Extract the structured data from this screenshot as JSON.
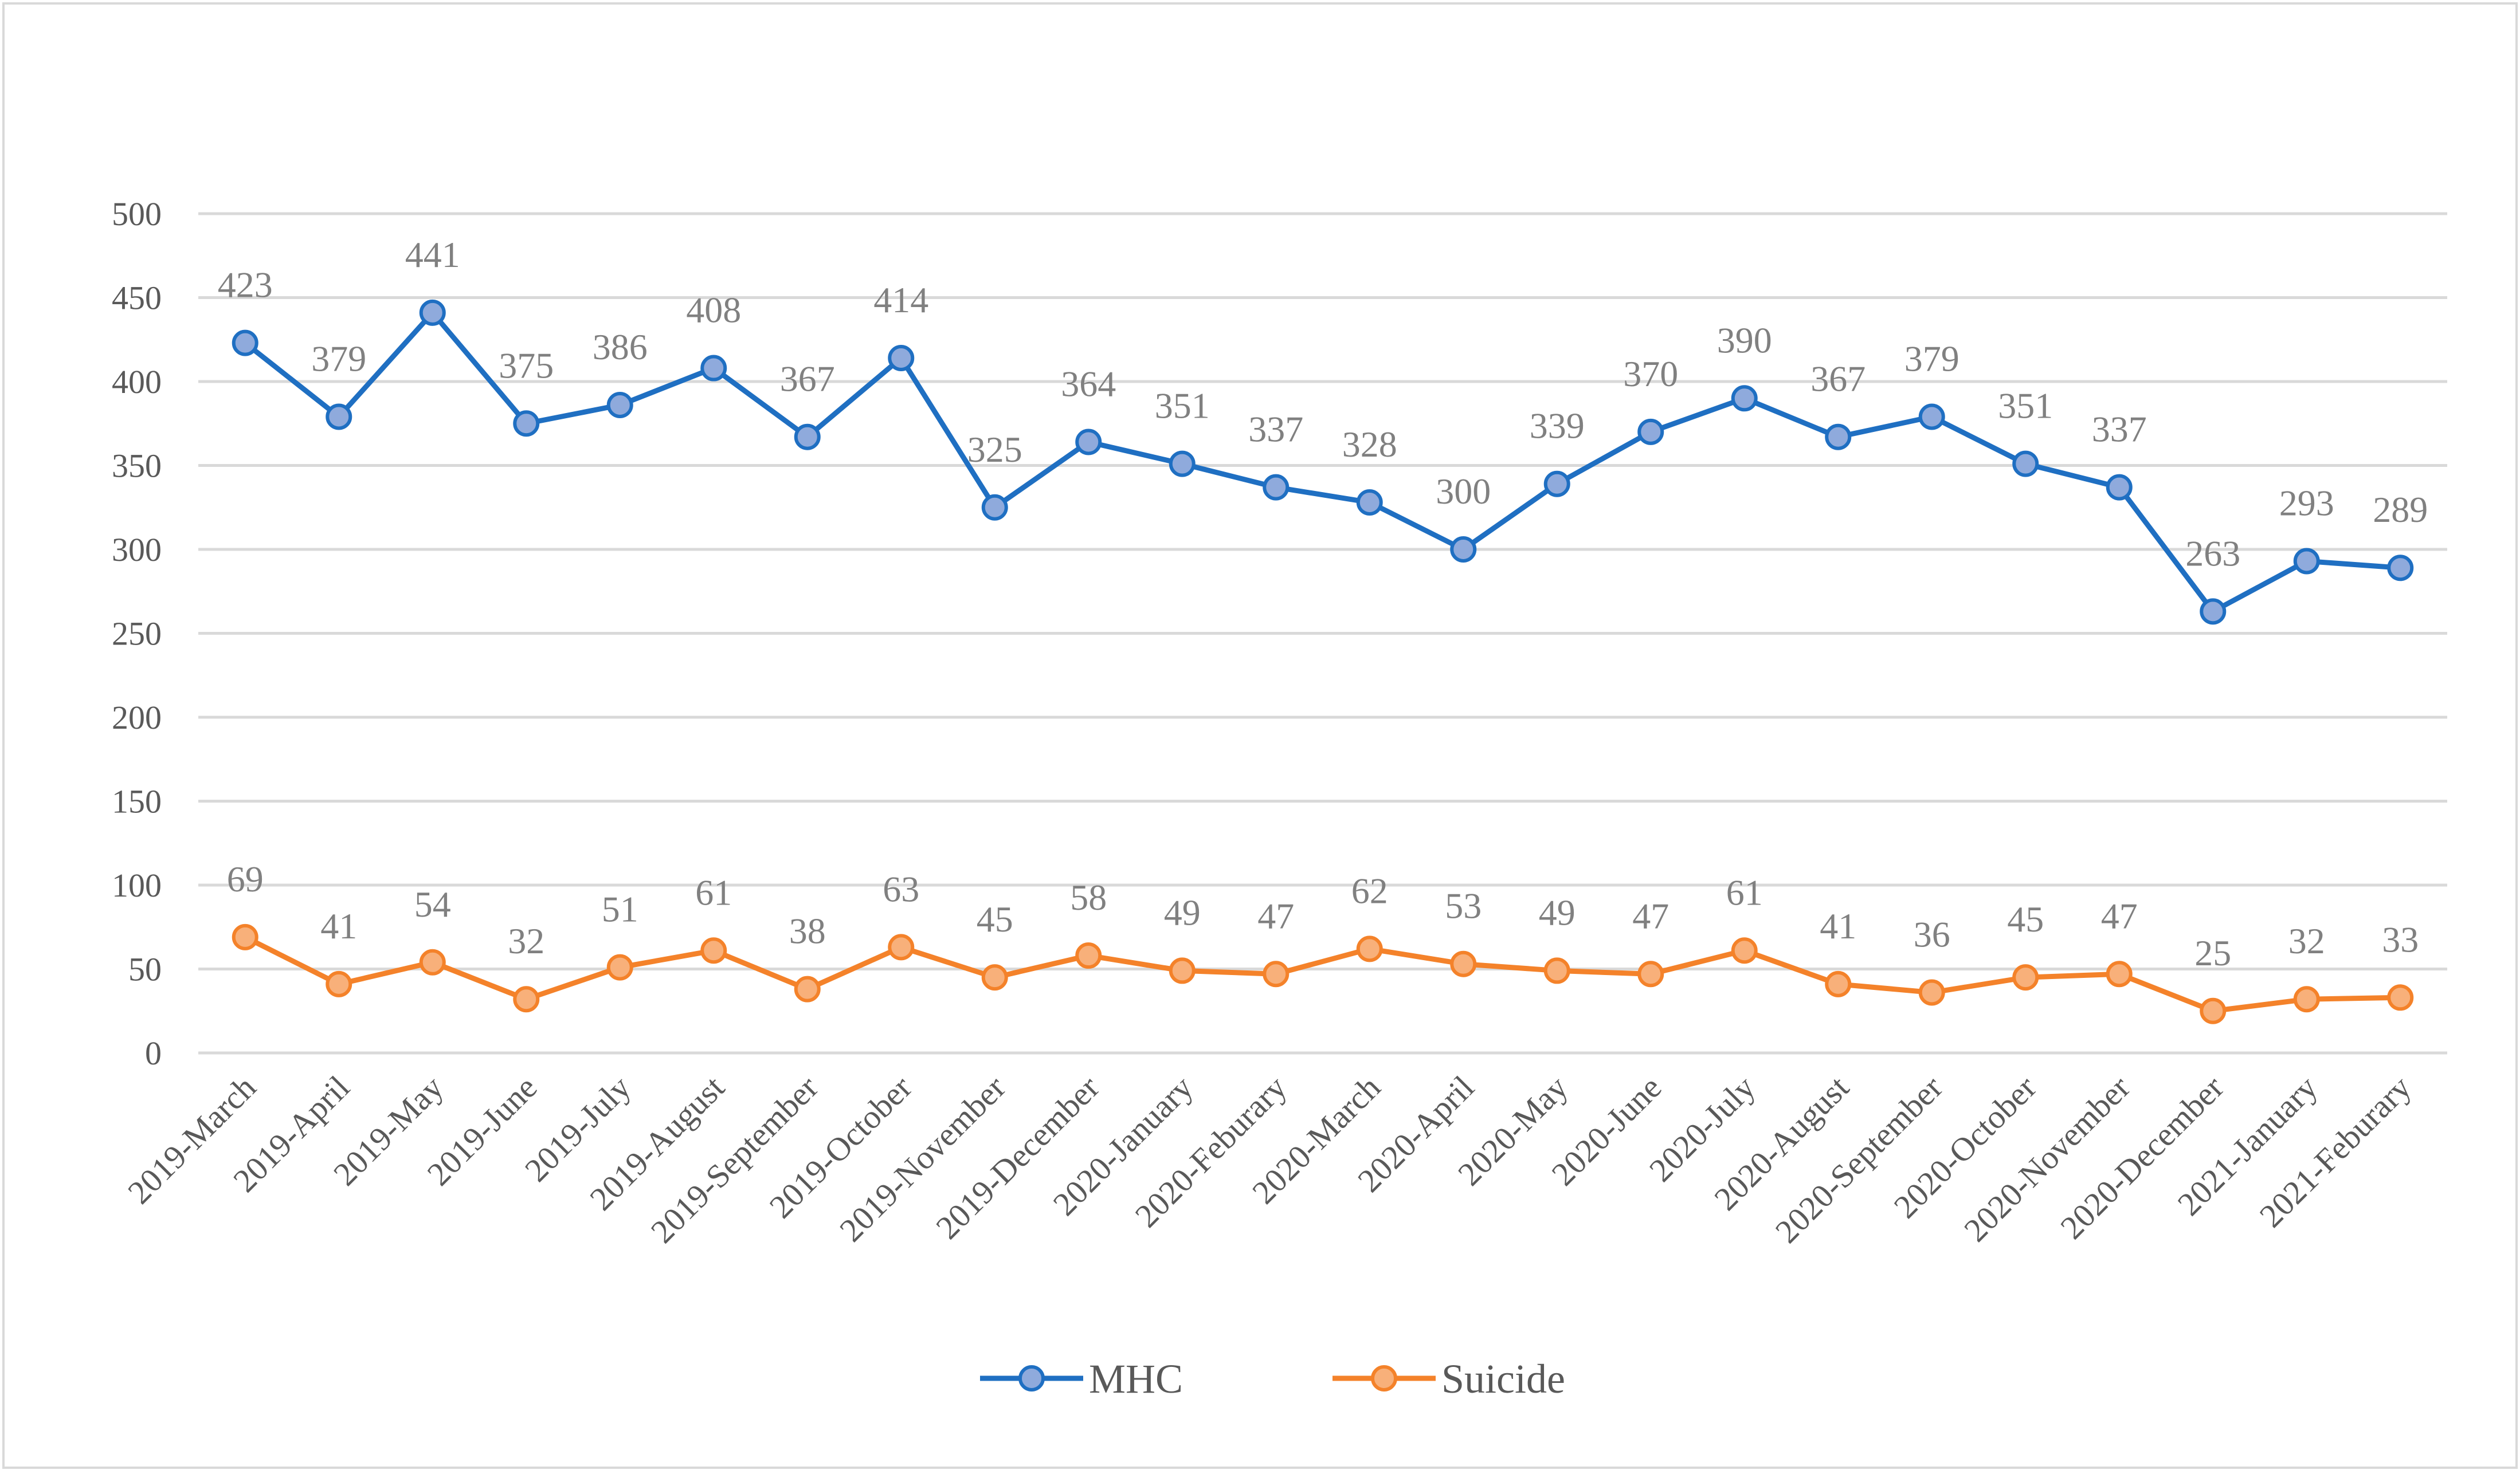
{
  "chart_data": {
    "type": "line",
    "title": "",
    "xlabel": "",
    "ylabel": "",
    "ylim": [
      0,
      500
    ],
    "yticks": [
      0,
      50,
      100,
      150,
      200,
      250,
      300,
      350,
      400,
      450,
      500
    ],
    "grid": true,
    "legend_position": "bottom",
    "categories": [
      "2019-March",
      "2019-April",
      "2019-May",
      "2019-June",
      "2019-July",
      "2019-August",
      "2019-September",
      "2019-October",
      "2019-November",
      "2019-December",
      "2020-January",
      "2020-Feburary",
      "2020-March",
      "2020-April",
      "2020-May",
      "2020-June",
      "2020-July",
      "2020-August",
      "2020-September",
      "2020-October",
      "2020-November",
      "2020-December",
      "2021-January",
      "2021-Feburary"
    ],
    "series": [
      {
        "name": "MHC",
        "line_color": "#1f6fc2",
        "marker_fill": "#8faadc",
        "values": [
          423,
          379,
          441,
          375,
          386,
          408,
          367,
          414,
          325,
          364,
          351,
          337,
          328,
          300,
          339,
          370,
          390,
          367,
          379,
          351,
          337,
          263,
          293,
          289
        ]
      },
      {
        "name": "Suicide",
        "line_color": "#f4822a",
        "marker_fill": "#f8b07a",
        "values": [
          69,
          41,
          54,
          32,
          51,
          61,
          38,
          63,
          45,
          58,
          49,
          47,
          62,
          53,
          49,
          47,
          61,
          41,
          36,
          45,
          47,
          25,
          32,
          33
        ]
      }
    ]
  }
}
